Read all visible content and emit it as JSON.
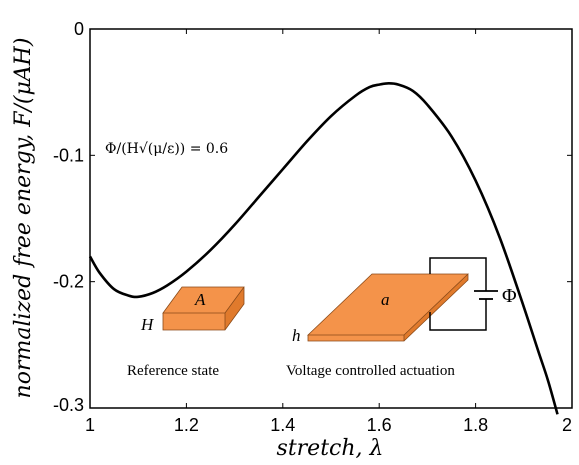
{
  "chart_data": {
    "type": "line",
    "xlabel": "stretch, λ",
    "ylabel": "normalized free energy, F/(μAH)",
    "xlim": [
      1,
      2
    ],
    "ylim": [
      -0.3,
      0
    ],
    "x_ticks": [
      "1",
      "1.2",
      "1.4",
      "1.6",
      "1.8",
      "2"
    ],
    "y_ticks": [
      "0",
      "-0.1",
      "-0.2",
      "-0.3"
    ],
    "grid": false,
    "series": [
      {
        "color": "#000000",
        "x": [
          1.0,
          1.02,
          1.05,
          1.08,
          1.1,
          1.13,
          1.16,
          1.2,
          1.25,
          1.3,
          1.35,
          1.4,
          1.45,
          1.5,
          1.55,
          1.58,
          1.6,
          1.62,
          1.64,
          1.67,
          1.7,
          1.75,
          1.8,
          1.85,
          1.9,
          1.93,
          1.95,
          1.97
        ],
        "y": [
          -0.18,
          -0.193,
          -0.206,
          -0.211,
          -0.212,
          -0.209,
          -0.203,
          -0.192,
          -0.175,
          -0.155,
          -0.133,
          -0.111,
          -0.089,
          -0.069,
          -0.053,
          -0.046,
          -0.044,
          -0.043,
          -0.044,
          -0.049,
          -0.06,
          -0.085,
          -0.12,
          -0.165,
          -0.22,
          -0.255,
          -0.278,
          -0.305
        ]
      }
    ],
    "annotations": [
      {
        "text": "Φ/(H√(μ/ε)) = 0.6"
      }
    ]
  },
  "inset": {
    "reference_caption": "Reference state",
    "actuation_caption": "Voltage controlled actuation",
    "label_A": "A",
    "label_H": "H",
    "label_a": "a",
    "label_h": "h",
    "label_phi": "Φ",
    "plate_color": "#f4934a",
    "plate_side_color": "#e07a2c"
  }
}
